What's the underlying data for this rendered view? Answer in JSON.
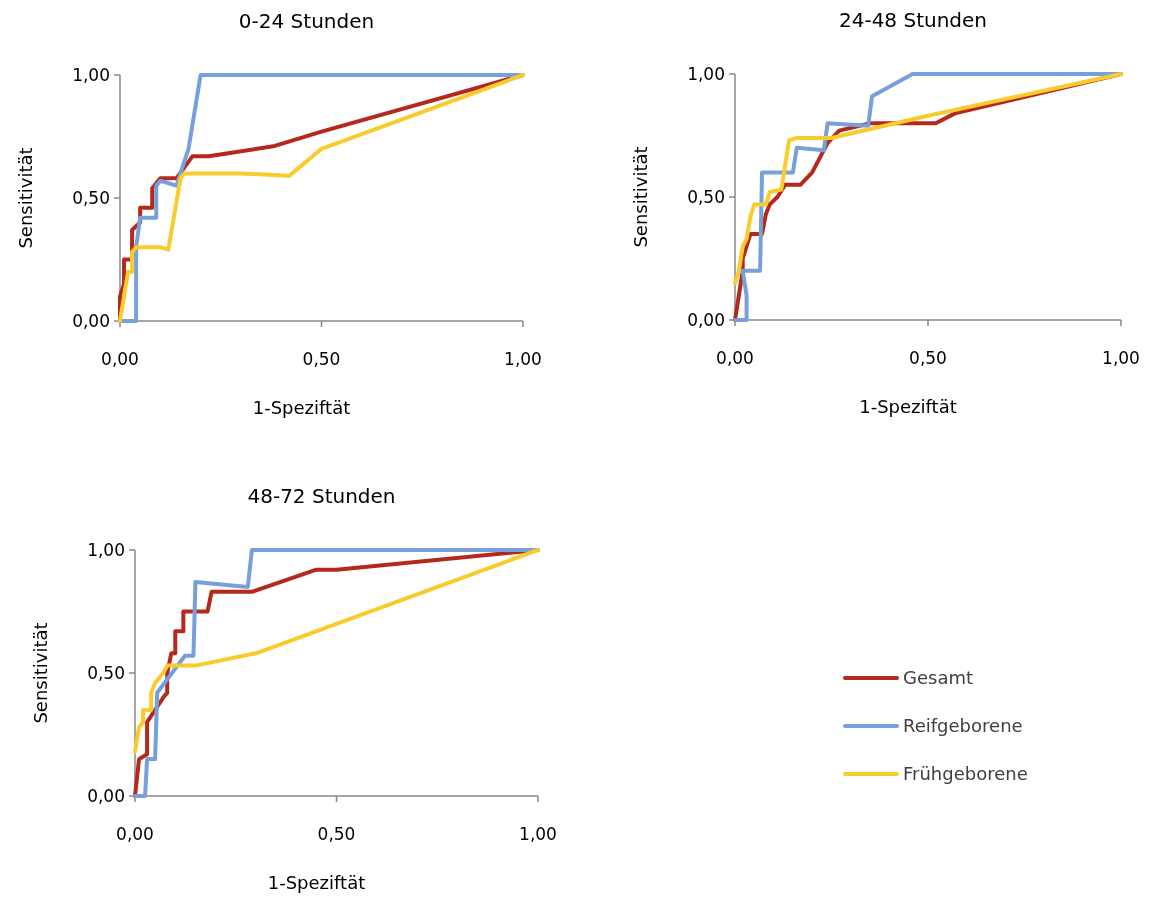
{
  "chart_data": [
    {
      "type": "line",
      "title": "0-24 Stunden",
      "xlabel": "1-Speziftät",
      "ylabel": "Sensitivität",
      "xlim": [
        0,
        1
      ],
      "ylim": [
        0,
        1
      ],
      "xticks": [
        {
          "value": 0,
          "label": "0,00"
        },
        {
          "value": 0.5,
          "label": "0,50"
        },
        {
          "value": 1,
          "label": "1,00"
        }
      ],
      "yticks": [
        {
          "value": 0,
          "label": "0,00"
        },
        {
          "value": 0.5,
          "label": "0,50"
        },
        {
          "value": 1,
          "label": "1,00"
        }
      ],
      "grid": false,
      "legend": false,
      "marker": "none",
      "line_style": "solid",
      "series": [
        {
          "color": "#b5281c",
          "x": [
            0,
            0,
            0.01,
            0.01,
            0.03,
            0.03,
            0.05,
            0.05,
            0.08,
            0.08,
            0.1,
            0.14,
            0.18,
            0.22,
            0.38,
            0.5,
            1
          ],
          "values": [
            0,
            0.1,
            0.15,
            0.25,
            0.25,
            0.37,
            0.4,
            0.46,
            0.46,
            0.54,
            0.58,
            0.58,
            0.67,
            0.67,
            0.71,
            0.77,
            1
          ]
        },
        {
          "color": "#779fdc",
          "x": [
            0,
            0.04,
            0.04,
            0.05,
            0.09,
            0.09,
            0.1,
            0.14,
            0.17,
            0.19,
            0.2,
            0.23,
            1
          ],
          "values": [
            0,
            0,
            0.3,
            0.42,
            0.42,
            0.55,
            0.57,
            0.55,
            0.7,
            0.9,
            1,
            1,
            1
          ]
        },
        {
          "color": "#f8cc2c",
          "x": [
            0,
            0.01,
            0.02,
            0.03,
            0.03,
            0.04,
            0.1,
            0.12,
            0.15,
            0.16,
            0.3,
            0.42,
            0.5,
            1
          ],
          "values": [
            0,
            0.1,
            0.2,
            0.2,
            0.28,
            0.3,
            0.3,
            0.29,
            0.58,
            0.6,
            0.6,
            0.59,
            0.7,
            1
          ]
        }
      ]
    },
    {
      "type": "line",
      "title": "24-48 Stunden",
      "xlabel": "1-Speziftät",
      "ylabel": "Sensitivität",
      "xlim": [
        0,
        1
      ],
      "ylim": [
        0,
        1
      ],
      "xticks": [
        {
          "value": 0,
          "label": "0,00"
        },
        {
          "value": 0.5,
          "label": "0,50"
        },
        {
          "value": 1,
          "label": "1,00"
        }
      ],
      "yticks": [
        {
          "value": 0,
          "label": "0,00"
        },
        {
          "value": 0.5,
          "label": "0,50"
        },
        {
          "value": 1,
          "label": "1,00"
        }
      ],
      "grid": false,
      "legend": false,
      "marker": "none",
      "line_style": "solid",
      "series": [
        {
          "color": "#b5281c",
          "x": [
            0,
            0.01,
            0.02,
            0.02,
            0.03,
            0.04,
            0.07,
            0.08,
            0.09,
            0.11,
            0.13,
            0.17,
            0.2,
            0.24,
            0.27,
            0.35,
            0.52,
            0.57,
            1
          ],
          "values": [
            0,
            0.1,
            0.2,
            0.25,
            0.3,
            0.35,
            0.35,
            0.43,
            0.47,
            0.5,
            0.55,
            0.55,
            0.6,
            0.72,
            0.77,
            0.8,
            0.8,
            0.84,
            1
          ]
        },
        {
          "color": "#779fdc",
          "x": [
            0,
            0.03,
            0.03,
            0.02,
            0.065,
            0.07,
            0.15,
            0.16,
            0.23,
            0.24,
            0.345,
            0.355,
            0.46,
            1
          ],
          "values": [
            0,
            0,
            0.1,
            0.2,
            0.2,
            0.6,
            0.6,
            0.7,
            0.69,
            0.8,
            0.79,
            0.91,
            1,
            1
          ]
        },
        {
          "color": "#f8cc2c",
          "x": [
            0,
            0.01,
            0.02,
            0.03,
            0.04,
            0.05,
            0.08,
            0.09,
            0.12,
            0.14,
            0.16,
            0.25,
            0.5,
            1
          ],
          "values": [
            0.15,
            0.2,
            0.3,
            0.33,
            0.42,
            0.47,
            0.47,
            0.52,
            0.53,
            0.73,
            0.74,
            0.74,
            0.83,
            1
          ]
        }
      ]
    },
    {
      "type": "line",
      "title": "48-72 Stunden",
      "xlabel": "1-Speziftät",
      "ylabel": "Sensitivität",
      "xlim": [
        0,
        1
      ],
      "ylim": [
        0,
        1
      ],
      "xticks": [
        {
          "value": 0,
          "label": "0,00"
        },
        {
          "value": 0.5,
          "label": "0,50"
        },
        {
          "value": 1,
          "label": "1,00"
        }
      ],
      "yticks": [
        {
          "value": 0,
          "label": "0,00"
        },
        {
          "value": 0.5,
          "label": "0,50"
        },
        {
          "value": 1,
          "label": "1,00"
        }
      ],
      "grid": false,
      "legend": "right",
      "marker": "none",
      "line_style": "solid",
      "series": [
        {
          "name": "Gesamt",
          "color": "#b5281c",
          "x": [
            0,
            0.01,
            0.03,
            0.03,
            0.05,
            0.07,
            0.08,
            0.08,
            0.09,
            0.1,
            0.1,
            0.12,
            0.12,
            0.18,
            0.19,
            0.29,
            0.45,
            0.5,
            1
          ],
          "values": [
            0,
            0.15,
            0.17,
            0.3,
            0.35,
            0.4,
            0.42,
            0.5,
            0.58,
            0.58,
            0.67,
            0.67,
            0.75,
            0.75,
            0.83,
            0.83,
            0.92,
            0.92,
            1
          ]
        },
        {
          "name": "Reifgeborene",
          "color": "#779fdc",
          "x": [
            0,
            0.025,
            0.03,
            0.05,
            0.055,
            0.124,
            0.145,
            0.15,
            0.28,
            0.29,
            0.355,
            1
          ],
          "values": [
            0,
            0,
            0.15,
            0.15,
            0.42,
            0.57,
            0.57,
            0.87,
            0.85,
            1,
            1,
            1
          ]
        },
        {
          "name": "Frühgeborene",
          "color": "#f8cc2c",
          "x": [
            0,
            0.01,
            0.02,
            0.02,
            0.04,
            0.04,
            0.05,
            0.07,
            0.08,
            0.15,
            0.3,
            1
          ],
          "values": [
            0.18,
            0.28,
            0.3,
            0.35,
            0.35,
            0.42,
            0.46,
            0.5,
            0.53,
            0.53,
            0.58,
            1
          ]
        }
      ]
    }
  ]
}
